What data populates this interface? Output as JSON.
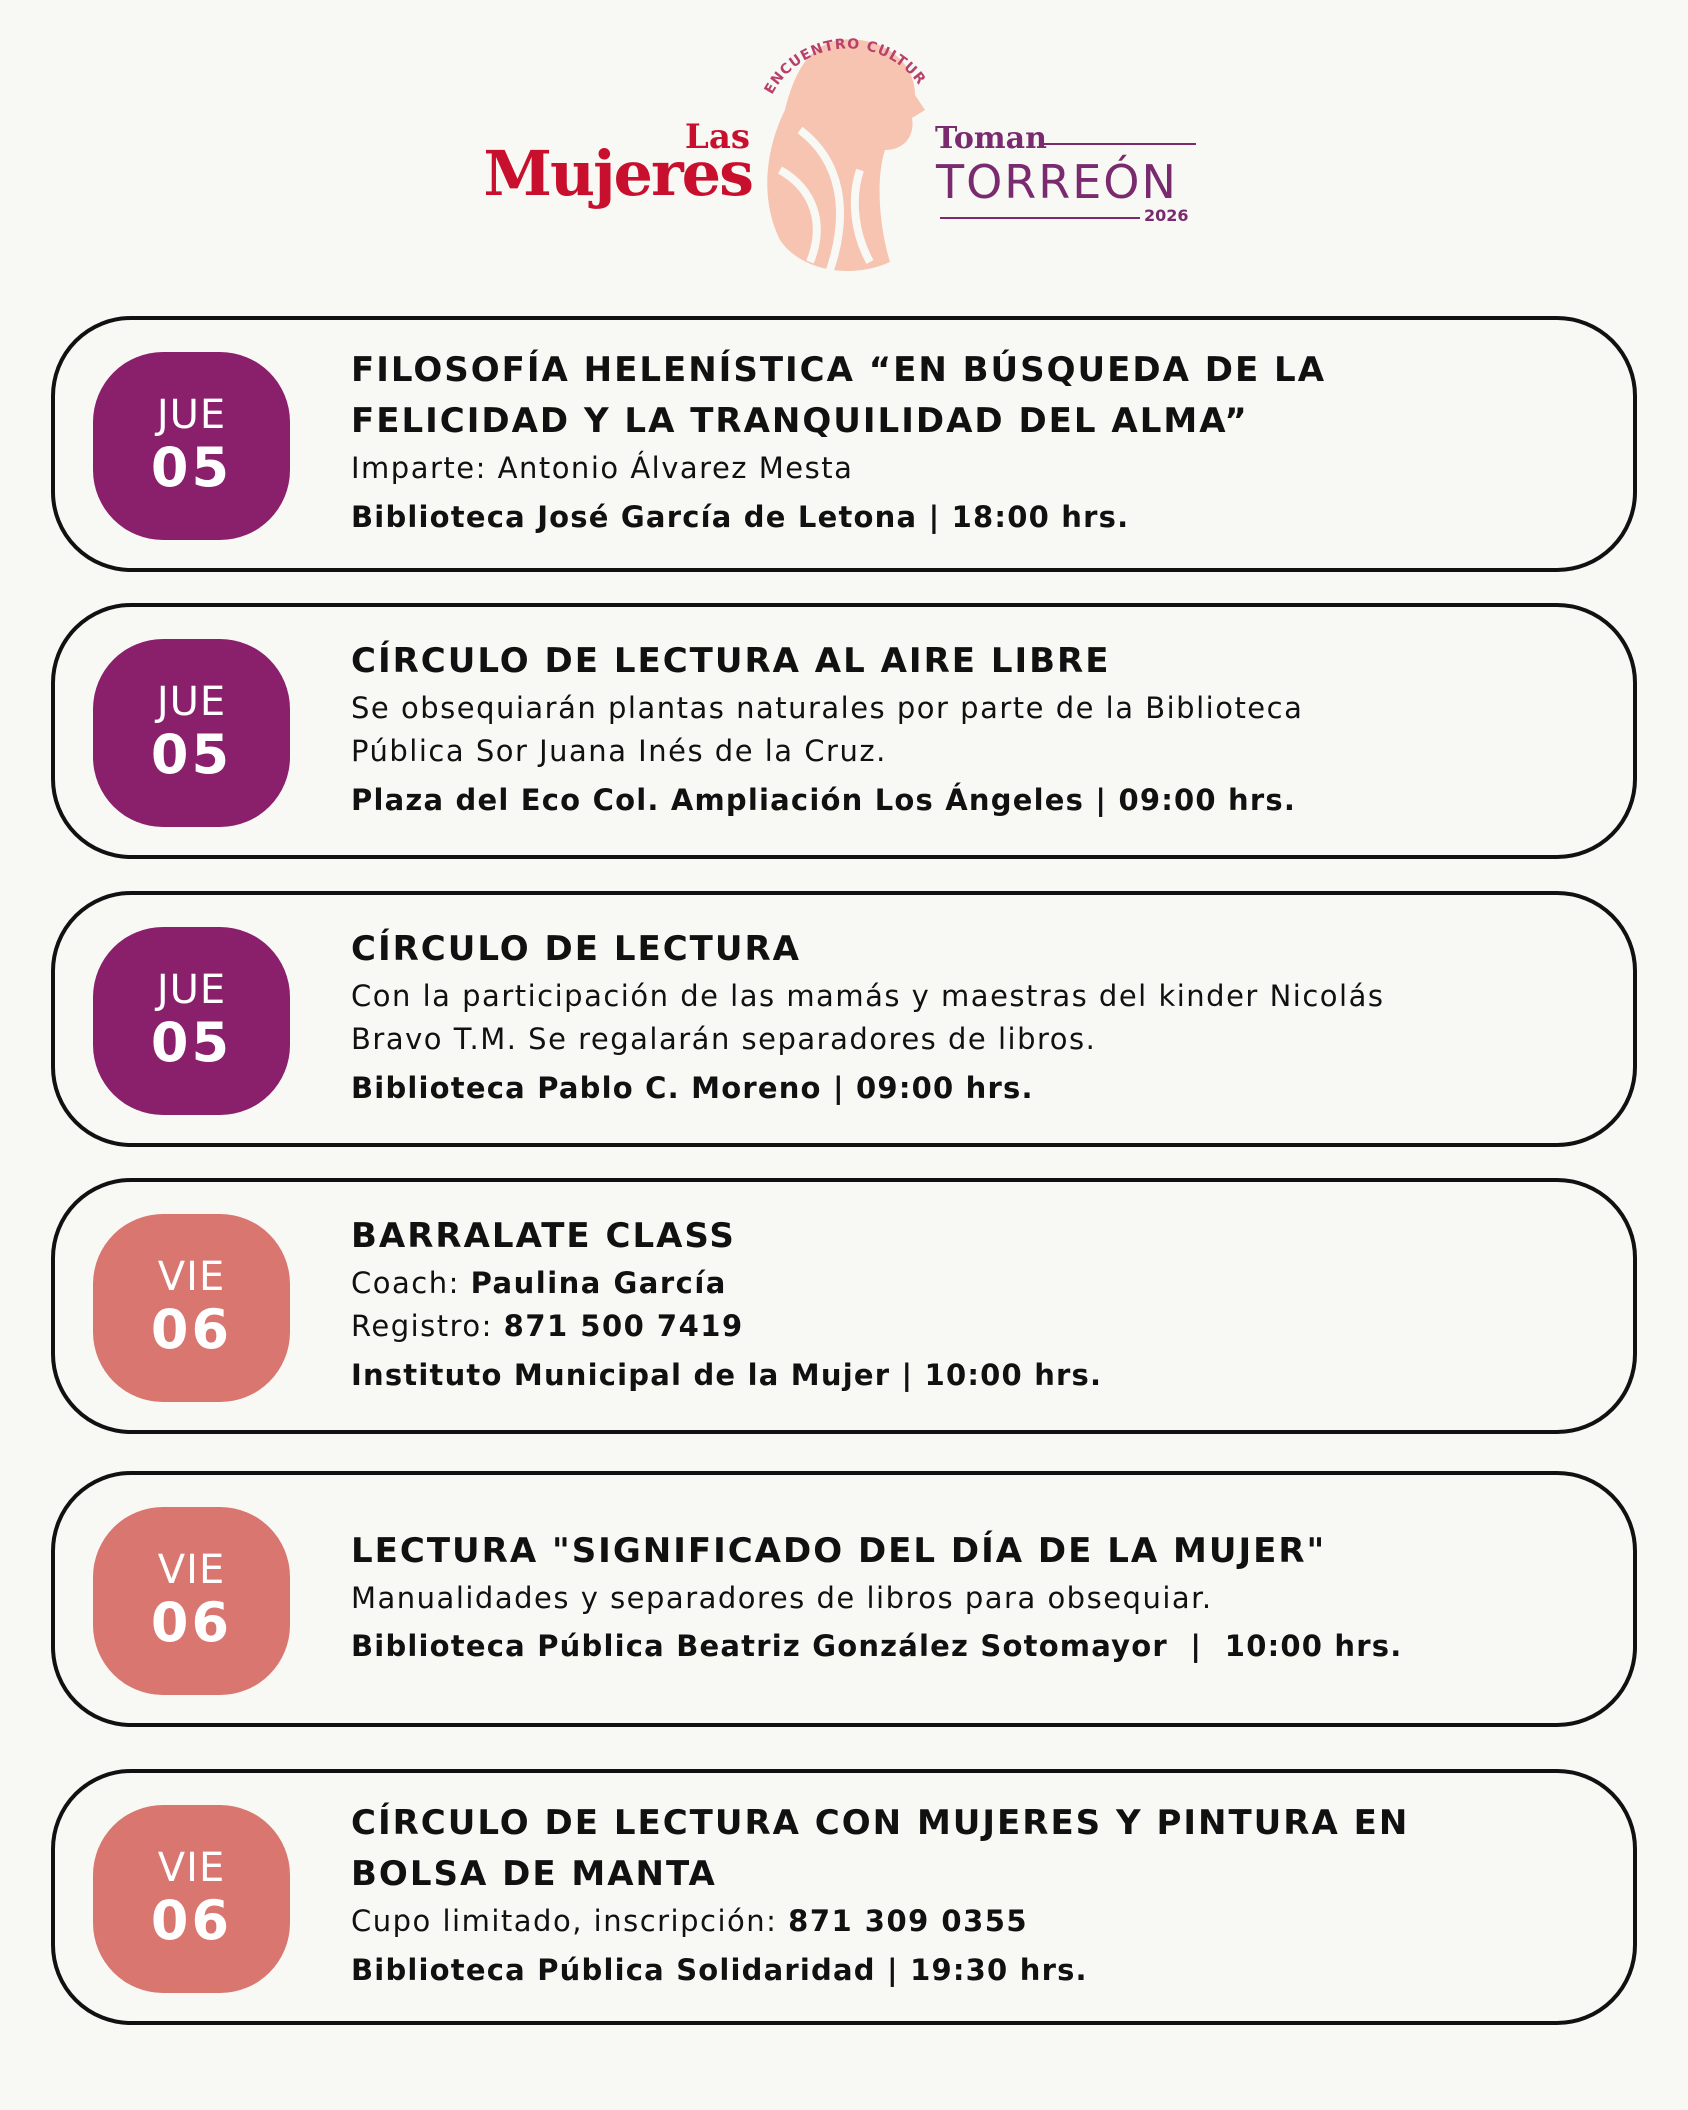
{
  "header": {
    "arc_text": "ENCUENTRO CULTURAL",
    "las": "Las",
    "mujeres": "Mujeres",
    "toman": "Toman",
    "city": "TORREÓN",
    "year": "2026"
  },
  "events": [
    {
      "day": "JUE",
      "date": "05",
      "title": "FILOSOFÍA HELENÍSTICA “EN BÚSQUEDA DE LA FELICIDAD Y LA TRANQUILIDAD DEL ALMA”",
      "details": [
        {
          "label": "Imparte: Antonio Álvarez Mesta"
        }
      ],
      "venue": "Biblioteca José García de Letona | 18:00 hrs."
    },
    {
      "day": "JUE",
      "date": "05",
      "title": "CÍRCULO DE LECTURA AL AIRE LIBRE",
      "details": [
        {
          "label": "Se obsequiarán plantas naturales por parte de la Biblioteca Pública Sor Juana Inés de la Cruz."
        }
      ],
      "venue": "Plaza del Eco Col. Ampliación Los Ángeles | 09:00 hrs."
    },
    {
      "day": "JUE",
      "date": "05",
      "title": "CÍRCULO DE LECTURA",
      "details": [
        {
          "label": "Con la participación de las mamás y maestras del kinder Nicolás Bravo T.M. Se regalarán separadores de libros."
        }
      ],
      "venue": "Biblioteca Pablo C. Moreno | 09:00 hrs."
    },
    {
      "day": "VIE",
      "date": "06",
      "title": "BARRALATE CLASS",
      "details": [
        {
          "label": "Coach:",
          "value": "Paulina García"
        },
        {
          "label": "Registro:",
          "value": "871 500 7419"
        }
      ],
      "venue": "Instituto Municipal de la Mujer | 10:00 hrs."
    },
    {
      "day": "VIE",
      "date": "06",
      "title": "LECTURA \"SIGNIFICADO DEL DÍA DE LA MUJER\"",
      "details": [
        {
          "label": "Manualidades y separadores de libros para obsequiar."
        }
      ],
      "venue": "Biblioteca Pública Beatriz González Sotomayor  |  10:00 hrs."
    },
    {
      "day": "VIE",
      "date": "06",
      "title": "CÍRCULO DE LECTURA CON MUJERES Y PINTURA EN BOLSA DE MANTA",
      "details": [
        {
          "label": "Cupo limitado, inscripción:",
          "value": "871 309 0355"
        }
      ],
      "venue": "Biblioteca Pública Solidaridad | 19:30 hrs."
    }
  ]
}
